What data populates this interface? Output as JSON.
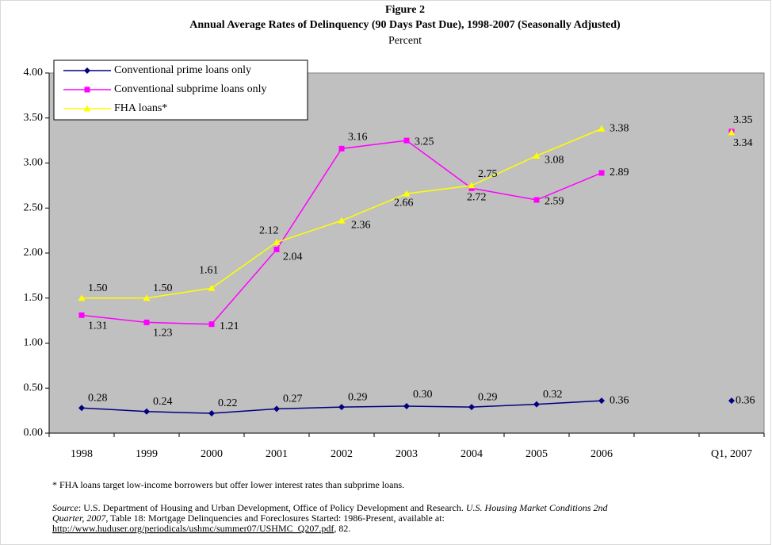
{
  "chart_data": {
    "type": "line",
    "title": "Figure 2",
    "subtitle": "Annual Average Rates of Delinquency (90 Days Past Due), 1998-2007 (Seasonally Adjusted)",
    "y_label": "Percent",
    "categories": [
      "1998",
      "1999",
      "2000",
      "2001",
      "2002",
      "2003",
      "2004",
      "2005",
      "2006",
      null,
      "Q1, 2007"
    ],
    "series": [
      {
        "name": "Conventional prime loans only",
        "color": "#000080",
        "marker": "diamond",
        "values": [
          0.28,
          0.24,
          0.22,
          0.27,
          0.29,
          0.3,
          0.29,
          0.32,
          0.36,
          null,
          0.36
        ],
        "value_labels": [
          "0.28",
          "0.24",
          "0.22",
          "0.27",
          "0.29",
          "0.30",
          "0.29",
          "0.32",
          "0.36",
          null,
          "0.36"
        ]
      },
      {
        "name": "Conventional subprime loans only",
        "color": "#ff00ff",
        "marker": "square",
        "values": [
          1.31,
          1.23,
          1.21,
          2.04,
          3.16,
          3.25,
          2.72,
          2.59,
          2.89,
          null,
          3.35
        ],
        "value_labels": [
          "1.31",
          "1.23",
          "1.21",
          "2.04",
          "3.16",
          "3.25",
          "2.72",
          "2.59",
          "2.89",
          null,
          "3.35"
        ]
      },
      {
        "name": "FHA loans*",
        "color": "#ffff00",
        "marker": "triangle",
        "values": [
          1.5,
          1.5,
          1.61,
          2.12,
          2.36,
          2.66,
          2.75,
          3.08,
          3.38,
          null,
          3.34
        ],
        "value_labels": [
          "1.50",
          "1.50",
          "1.61",
          "2.12",
          "2.36",
          "2.66",
          "2.75",
          "3.08",
          "3.38",
          null,
          "3.34"
        ]
      }
    ],
    "ylim": [
      0,
      4
    ],
    "yticks": [
      {
        "value": 0,
        "label": "0.00"
      },
      {
        "value": 0.5,
        "label": "0.50"
      },
      {
        "value": 1,
        "label": "1.00"
      },
      {
        "value": 1.5,
        "label": "1.50"
      },
      {
        "value": 2,
        "label": "2.00"
      },
      {
        "value": 2.5,
        "label": "2.50"
      },
      {
        "value": 3,
        "label": "3.00"
      },
      {
        "value": 3.5,
        "label": "3.50"
      },
      {
        "value": 4,
        "label": "4.00"
      }
    ],
    "plot_background": "#c0c0c0",
    "legend": "top-left",
    "footnote": "* FHA loans target low-income borrowers but offer lower interest rates than subprime loans.",
    "source": {
      "label": "Source",
      "text1": ": U.S. Department of Housing and Urban Development, Office of Policy Development and Research. ",
      "title1": "U.S. Housing Market Conditions 2nd",
      "title2": "Quarter, 2007",
      "text2": ", Table 18: Mortgage Delinquencies and Foreclosures Started: 1986-Present, available at:",
      "url": "http://www.huduser.org/periodicals/ushmc/summer07/USHMC_Q207.pdf",
      "text3": ", 82."
    }
  }
}
